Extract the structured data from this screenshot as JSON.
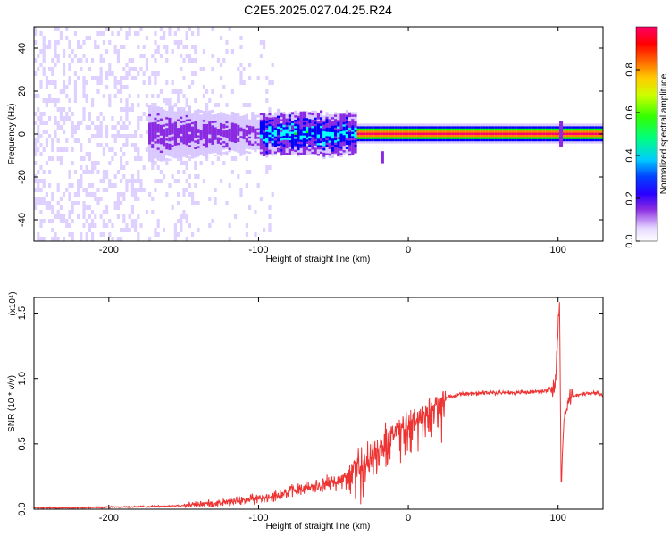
{
  "figure": {
    "title": "C2E5.2025.027.04.25.R24"
  },
  "chart_data": [
    {
      "type": "heatmap",
      "description_axes": {
        "xlabel": "Height of straight line (km)",
        "ylabel": "Frequency (Hz)"
      },
      "xlim": [
        -250,
        130
      ],
      "ylim": [
        -50,
        50
      ],
      "x_ticks": [
        -200,
        -100,
        0,
        100
      ],
      "y_ticks": [
        -40,
        -20,
        0,
        20,
        40
      ],
      "colorbar": {
        "label": "Normalized spectral amplitude",
        "range": [
          0,
          1
        ],
        "ticks": [
          "0.0",
          "0.2",
          "0.4",
          "0.6",
          "0.8"
        ],
        "colors": [
          "#ffffff",
          "#d8c8ff",
          "#8a2be2",
          "#0000ff",
          "#00ffff",
          "#00ff00",
          "#ffff00",
          "#ff8000",
          "#ff0000",
          "#ff0066"
        ]
      },
      "features": {
        "noise_region_x": [
          -250,
          -100
        ],
        "signal_band_start_x": -175,
        "signal_center_freq_hz": 0,
        "strong_band_start_x": -35,
        "transient_x": 102
      }
    },
    {
      "type": "line",
      "xlabel": "Height of straight line (km)",
      "ylabel": "SNR (10 * v/v)",
      "scale_note": "(x10⁴)",
      "xlim": [
        -250,
        130
      ],
      "ylim": [
        0,
        1.62
      ],
      "x_ticks": [
        -200,
        -100,
        0,
        100
      ],
      "y_ticks": [
        "0.0",
        "0.5",
        "1.0",
        "1.5"
      ],
      "color": "#ee3333",
      "series": [
        {
          "x": [
            -250,
            -225,
            -200,
            -175,
            -150,
            -125,
            -100,
            -80,
            -60,
            -45,
            -35,
            -25,
            -15,
            -5,
            5,
            15,
            25,
            35,
            50,
            70,
            90,
            98,
            101,
            102,
            104,
            108,
            115,
            125,
            130
          ],
          "y": [
            0.01,
            0.01,
            0.015,
            0.02,
            0.03,
            0.05,
            0.08,
            0.13,
            0.18,
            0.22,
            0.3,
            0.45,
            0.55,
            0.62,
            0.68,
            0.78,
            0.85,
            0.88,
            0.89,
            0.89,
            0.9,
            0.93,
            1.62,
            0.2,
            0.7,
            0.86,
            0.88,
            0.89,
            0.87
          ]
        }
      ]
    }
  ]
}
